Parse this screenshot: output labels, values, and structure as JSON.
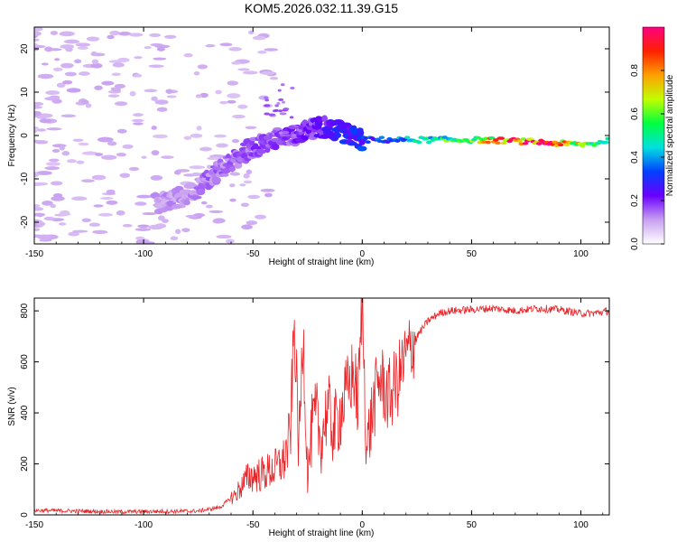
{
  "title": "KOM5.2026.032.11.39.G15",
  "chart_data": [
    {
      "type": "heatmap",
      "name": "spectrogram",
      "xlabel": "Height of straight line (km)",
      "ylabel": "Frequency (Hz)",
      "xlim": [
        -150,
        113
      ],
      "ylim": [
        -25,
        25
      ],
      "xticks": [
        -150,
        -100,
        -50,
        0,
        50,
        100
      ],
      "yticks": [
        -20,
        -10,
        0,
        10,
        20
      ],
      "colorbar": {
        "label": "Normalized spectral amplitude",
        "range": [
          0,
          1
        ],
        "ticks": [
          0.0,
          0.2,
          0.4,
          0.6,
          0.8
        ],
        "tick_labels": [
          "0.0",
          "0.2",
          "0.4",
          "0.6",
          "0.8"
        ],
        "colormap": [
          "#ffffff",
          "#c8a0f0",
          "#6a00ff",
          "#0040ff",
          "#00e0e0",
          "#00ff40",
          "#c0ff00",
          "#ffa000",
          "#ff2000",
          "#ff0080"
        ]
      },
      "ridge": [
        {
          "x": -95,
          "f": -16,
          "a": 0.12
        },
        {
          "x": -80,
          "f": -14,
          "a": 0.12
        },
        {
          "x": -70,
          "f": -10,
          "a": 0.15
        },
        {
          "x": -62,
          "f": -7,
          "a": 0.15
        },
        {
          "x": -55,
          "f": -4,
          "a": 0.16
        },
        {
          "x": -45,
          "f": -2,
          "a": 0.18
        },
        {
          "x": -35,
          "f": 0,
          "a": 0.18
        },
        {
          "x": -25,
          "f": 1,
          "a": 0.2
        },
        {
          "x": -18,
          "f": 2,
          "a": 0.22
        },
        {
          "x": -10,
          "f": 1,
          "a": 0.28
        },
        {
          "x": 0,
          "f": -1,
          "a": 0.3
        },
        {
          "x": 15,
          "f": -1,
          "a": 0.35
        },
        {
          "x": 30,
          "f": -1,
          "a": 0.5
        },
        {
          "x": 50,
          "f": -1,
          "a": 0.6
        },
        {
          "x": 65,
          "f": -1.2,
          "a": 0.85
        },
        {
          "x": 80,
          "f": -1.5,
          "a": 0.9
        },
        {
          "x": 95,
          "f": -2,
          "a": 0.75
        },
        {
          "x": 105,
          "f": -2,
          "a": 0.55
        },
        {
          "x": 113,
          "f": -1,
          "a": 0.45
        }
      ]
    },
    {
      "type": "line",
      "name": "snr",
      "xlabel": "Height of straight line (km)",
      "ylabel": "SNR (v/v)",
      "xlim": [
        -150,
        113
      ],
      "ylim": [
        0,
        850
      ],
      "xticks": [
        -150,
        -100,
        -50,
        0,
        50,
        100
      ],
      "yticks": [
        0,
        200,
        400,
        600,
        800
      ],
      "color": "#e8262a",
      "series": [
        {
          "name": "SNR",
          "x": [
            -150,
            -130,
            -110,
            -90,
            -75,
            -65,
            -58,
            -52,
            -46,
            -40,
            -36,
            -33,
            -31,
            -29,
            -27,
            -25,
            -23,
            -21,
            -19,
            -16,
            -13,
            -10,
            -7,
            -4,
            -2,
            0,
            2,
            5,
            8,
            12,
            16,
            20,
            25,
            30,
            35,
            40,
            50,
            60,
            70,
            80,
            90,
            100,
            105,
            113
          ],
          "y": [
            18,
            15,
            12,
            14,
            15,
            30,
            80,
            150,
            160,
            180,
            210,
            300,
            750,
            250,
            730,
            150,
            330,
            390,
            280,
            420,
            330,
            400,
            480,
            560,
            430,
            850,
            260,
            420,
            540,
            460,
            520,
            620,
            700,
            760,
            790,
            800,
            805,
            810,
            800,
            810,
            805,
            790,
            790,
            800
          ]
        }
      ]
    }
  ]
}
